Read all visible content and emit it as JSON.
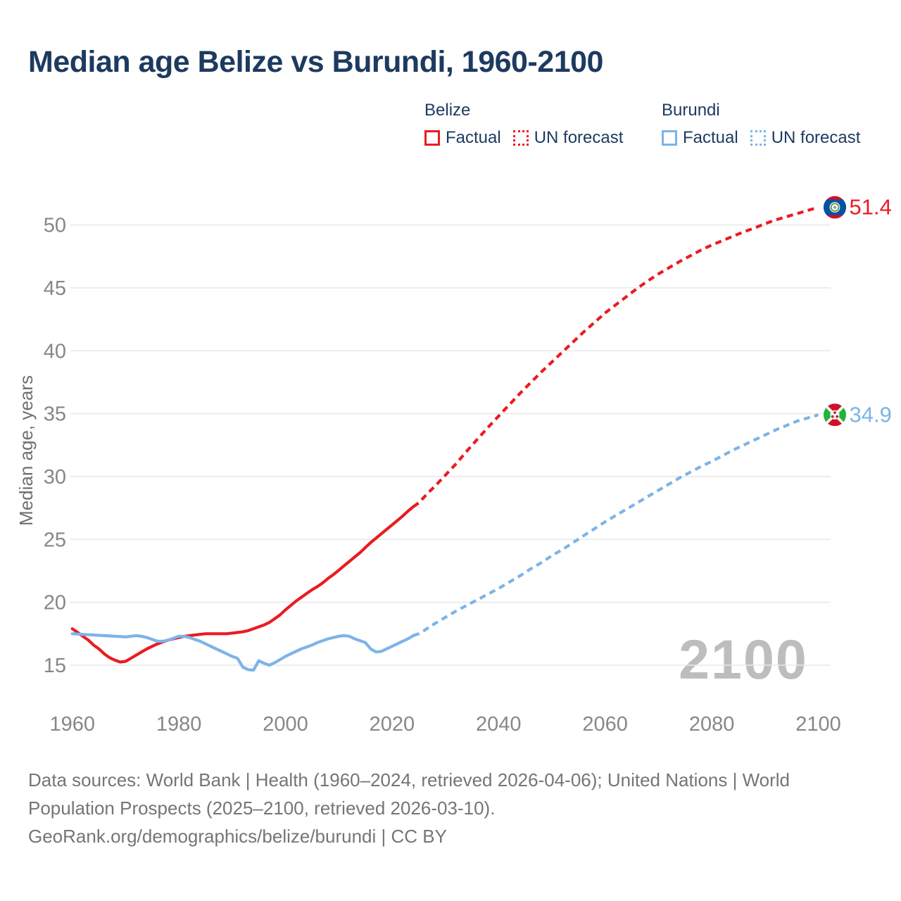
{
  "title": "Median age Belize vs Burundi, 1960-2100",
  "legend": {
    "groups": [
      {
        "name": "Belize",
        "items": [
          {
            "label": "Factual",
            "style": "solid",
            "color": "#ea1b22"
          },
          {
            "label": "UN forecast",
            "style": "dotted",
            "color": "#ea1b22"
          }
        ]
      },
      {
        "name": "Burundi",
        "items": [
          {
            "label": "Factual",
            "style": "solid",
            "color": "#7cb4e8"
          },
          {
            "label": "UN forecast",
            "style": "dotted",
            "color": "#7cb4e8"
          }
        ]
      }
    ]
  },
  "watermark": "2100",
  "footer": {
    "line1": "Data sources: World Bank | Health (1960–2024, retrieved 2026-04-06); United Nations | World",
    "line2": "Population Prospects (2025–2100, retrieved 2026-03-10).",
    "line3": "GeoRank.org/demographics/belize/burundi | CC BY"
  },
  "chart_data": {
    "type": "line",
    "title": "Median age Belize vs Burundi, 1960-2100",
    "xlabel": "",
    "ylabel": "Median age, years",
    "ylim": [
      12.5,
      53.5
    ],
    "xlim": [
      1956,
      2113
    ],
    "yticks": [
      15,
      20,
      25,
      30,
      35,
      40,
      45,
      50
    ],
    "xticks": [
      1960,
      1980,
      2000,
      2020,
      2040,
      2060,
      2080,
      2100
    ],
    "grid": "horizontal",
    "legend_position": "top",
    "colors": {
      "belize": "#ea1b22",
      "burundi": "#7cb4e8",
      "grid": "#e9e9e9",
      "axis_text": "#878787",
      "watermark": "#bdbdbd"
    },
    "series": [
      {
        "name": "Belize factual",
        "color": "#ea1b22",
        "dash": false,
        "points": [
          [
            1960,
            17.9
          ],
          [
            1961,
            17.6
          ],
          [
            1962,
            17.3
          ],
          [
            1963,
            17.0
          ],
          [
            1964,
            16.6
          ],
          [
            1965,
            16.3
          ],
          [
            1966,
            15.9
          ],
          [
            1967,
            15.6
          ],
          [
            1968,
            15.4
          ],
          [
            1969,
            15.25
          ],
          [
            1970,
            15.3
          ],
          [
            1971,
            15.55
          ],
          [
            1972,
            15.8
          ],
          [
            1973,
            16.05
          ],
          [
            1974,
            16.3
          ],
          [
            1975,
            16.5
          ],
          [
            1976,
            16.7
          ],
          [
            1977,
            16.85
          ],
          [
            1978,
            17.0
          ],
          [
            1979,
            17.1
          ],
          [
            1980,
            17.2
          ],
          [
            1981,
            17.3
          ],
          [
            1982,
            17.35
          ],
          [
            1983,
            17.4
          ],
          [
            1984,
            17.45
          ],
          [
            1985,
            17.5
          ],
          [
            1986,
            17.5
          ],
          [
            1987,
            17.5
          ],
          [
            1988,
            17.5
          ],
          [
            1989,
            17.5
          ],
          [
            1990,
            17.55
          ],
          [
            1991,
            17.6
          ],
          [
            1992,
            17.65
          ],
          [
            1993,
            17.75
          ],
          [
            1994,
            17.9
          ],
          [
            1995,
            18.05
          ],
          [
            1996,
            18.2
          ],
          [
            1997,
            18.4
          ],
          [
            1998,
            18.7
          ],
          [
            1999,
            19.0
          ],
          [
            2000,
            19.4
          ],
          [
            2001,
            19.75
          ],
          [
            2002,
            20.1
          ],
          [
            2003,
            20.4
          ],
          [
            2004,
            20.7
          ],
          [
            2005,
            21.0
          ],
          [
            2006,
            21.25
          ],
          [
            2007,
            21.55
          ],
          [
            2008,
            21.9
          ],
          [
            2009,
            22.2
          ],
          [
            2010,
            22.55
          ],
          [
            2011,
            22.9
          ],
          [
            2012,
            23.25
          ],
          [
            2013,
            23.6
          ],
          [
            2014,
            23.95
          ],
          [
            2015,
            24.35
          ],
          [
            2016,
            24.75
          ],
          [
            2017,
            25.1
          ],
          [
            2018,
            25.45
          ],
          [
            2019,
            25.8
          ],
          [
            2020,
            26.15
          ],
          [
            2021,
            26.5
          ],
          [
            2022,
            26.85
          ],
          [
            2023,
            27.25
          ],
          [
            2024,
            27.6
          ]
        ]
      },
      {
        "name": "Belize UN forecast",
        "color": "#ea1b22",
        "dash": true,
        "points": [
          [
            2025,
            27.9
          ],
          [
            2026,
            28.35
          ],
          [
            2027,
            28.8
          ],
          [
            2028,
            29.2
          ],
          [
            2029,
            29.65
          ],
          [
            2030,
            30.1
          ],
          [
            2032,
            31.0
          ],
          [
            2034,
            32.0
          ],
          [
            2036,
            32.95
          ],
          [
            2038,
            33.9
          ],
          [
            2040,
            34.8
          ],
          [
            2042,
            35.7
          ],
          [
            2044,
            36.6
          ],
          [
            2046,
            37.45
          ],
          [
            2048,
            38.3
          ],
          [
            2050,
            39.1
          ],
          [
            2052,
            39.9
          ],
          [
            2054,
            40.7
          ],
          [
            2056,
            41.5
          ],
          [
            2058,
            42.25
          ],
          [
            2060,
            43.0
          ],
          [
            2062,
            43.65
          ],
          [
            2064,
            44.3
          ],
          [
            2066,
            44.95
          ],
          [
            2068,
            45.55
          ],
          [
            2070,
            46.1
          ],
          [
            2072,
            46.6
          ],
          [
            2074,
            47.1
          ],
          [
            2076,
            47.55
          ],
          [
            2078,
            48.0
          ],
          [
            2080,
            48.4
          ],
          [
            2082,
            48.75
          ],
          [
            2084,
            49.1
          ],
          [
            2086,
            49.45
          ],
          [
            2088,
            49.75
          ],
          [
            2090,
            50.1
          ],
          [
            2092,
            50.4
          ],
          [
            2094,
            50.65
          ],
          [
            2096,
            50.9
          ],
          [
            2098,
            51.15
          ],
          [
            2100,
            51.4
          ]
        ]
      },
      {
        "name": "Burundi factual",
        "color": "#7cb4e8",
        "dash": false,
        "points": [
          [
            1960,
            17.5
          ],
          [
            1962,
            17.45
          ],
          [
            1964,
            17.4
          ],
          [
            1966,
            17.35
          ],
          [
            1968,
            17.3
          ],
          [
            1970,
            17.25
          ],
          [
            1971,
            17.3
          ],
          [
            1972,
            17.35
          ],
          [
            1973,
            17.3
          ],
          [
            1974,
            17.2
          ],
          [
            1975,
            17.05
          ],
          [
            1976,
            16.9
          ],
          [
            1977,
            16.9
          ],
          [
            1978,
            17.0
          ],
          [
            1979,
            17.15
          ],
          [
            1980,
            17.3
          ],
          [
            1981,
            17.3
          ],
          [
            1982,
            17.2
          ],
          [
            1983,
            17.05
          ],
          [
            1984,
            16.9
          ],
          [
            1985,
            16.7
          ],
          [
            1986,
            16.5
          ],
          [
            1987,
            16.3
          ],
          [
            1988,
            16.1
          ],
          [
            1989,
            15.9
          ],
          [
            1990,
            15.7
          ],
          [
            1991,
            15.55
          ],
          [
            1992,
            14.85
          ],
          [
            1993,
            14.65
          ],
          [
            1994,
            14.6
          ],
          [
            1995,
            15.35
          ],
          [
            1996,
            15.15
          ],
          [
            1997,
            15.0
          ],
          [
            1998,
            15.2
          ],
          [
            1999,
            15.45
          ],
          [
            2000,
            15.7
          ],
          [
            2001,
            15.9
          ],
          [
            2002,
            16.1
          ],
          [
            2003,
            16.3
          ],
          [
            2004,
            16.45
          ],
          [
            2005,
            16.6
          ],
          [
            2006,
            16.8
          ],
          [
            2007,
            16.95
          ],
          [
            2008,
            17.1
          ],
          [
            2009,
            17.2
          ],
          [
            2010,
            17.3
          ],
          [
            2011,
            17.35
          ],
          [
            2012,
            17.3
          ],
          [
            2013,
            17.1
          ],
          [
            2014,
            16.95
          ],
          [
            2015,
            16.8
          ],
          [
            2016,
            16.3
          ],
          [
            2017,
            16.05
          ],
          [
            2018,
            16.1
          ],
          [
            2019,
            16.3
          ],
          [
            2020,
            16.5
          ],
          [
            2021,
            16.7
          ],
          [
            2022,
            16.9
          ],
          [
            2023,
            17.1
          ],
          [
            2024,
            17.35
          ]
        ]
      },
      {
        "name": "Burundi UN forecast",
        "color": "#7cb4e8",
        "dash": true,
        "points": [
          [
            2025,
            17.5
          ],
          [
            2026,
            17.75
          ],
          [
            2028,
            18.3
          ],
          [
            2030,
            18.8
          ],
          [
            2032,
            19.3
          ],
          [
            2034,
            19.75
          ],
          [
            2036,
            20.2
          ],
          [
            2038,
            20.65
          ],
          [
            2040,
            21.1
          ],
          [
            2042,
            21.6
          ],
          [
            2044,
            22.1
          ],
          [
            2046,
            22.65
          ],
          [
            2048,
            23.15
          ],
          [
            2050,
            23.7
          ],
          [
            2052,
            24.2
          ],
          [
            2054,
            24.75
          ],
          [
            2056,
            25.3
          ],
          [
            2058,
            25.85
          ],
          [
            2060,
            26.4
          ],
          [
            2062,
            26.9
          ],
          [
            2064,
            27.4
          ],
          [
            2066,
            27.9
          ],
          [
            2068,
            28.4
          ],
          [
            2070,
            28.9
          ],
          [
            2072,
            29.4
          ],
          [
            2074,
            29.9
          ],
          [
            2076,
            30.35
          ],
          [
            2078,
            30.8
          ],
          [
            2080,
            31.2
          ],
          [
            2082,
            31.65
          ],
          [
            2084,
            32.1
          ],
          [
            2086,
            32.5
          ],
          [
            2088,
            32.9
          ],
          [
            2090,
            33.3
          ],
          [
            2092,
            33.7
          ],
          [
            2094,
            34.05
          ],
          [
            2096,
            34.4
          ],
          [
            2098,
            34.65
          ],
          [
            2100,
            34.9
          ]
        ]
      }
    ],
    "end_labels": [
      {
        "series": "Belize",
        "value": "51.4",
        "age": 51.4,
        "color": "#ea1b22",
        "flag": "belize"
      },
      {
        "series": "Burundi",
        "value": "34.9",
        "age": 34.9,
        "color": "#7cb4e8",
        "flag": "burundi"
      }
    ]
  }
}
